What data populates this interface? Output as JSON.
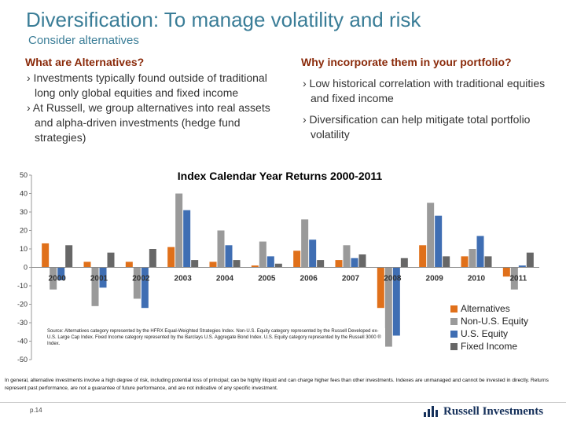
{
  "title": "Diversification: To manage volatility and risk",
  "subtitle": "Consider alternatives",
  "left_column": {
    "heading": "What are Alternatives?",
    "bullets": [
      "› Investments typically found outside of traditional long only global equities and fixed income",
      "› At Russell, we group alternatives into real assets and alpha-driven investments (hedge fund strategies)"
    ]
  },
  "right_column": {
    "heading": "Why incorporate them in your portfolio?",
    "bullets": [
      "› Low historical correlation with traditional equities and fixed income",
      "› Diversification can help mitigate total portfolio volatility"
    ]
  },
  "chart_data": {
    "type": "bar",
    "title": "Index Calendar Year Returns 2000-2011",
    "categories": [
      "2000",
      "2001",
      "2002",
      "2003",
      "2004",
      "2005",
      "2006",
      "2007",
      "2008",
      "2009",
      "2010",
      "2011"
    ],
    "ylim": [
      -50,
      50
    ],
    "yticks": [
      50,
      40,
      30,
      20,
      10,
      0,
      -10,
      -20,
      -30,
      -40,
      -50
    ],
    "series": [
      {
        "name": "Alternatives",
        "color": "#e0701a",
        "values": [
          13,
          3,
          3,
          11,
          3,
          1,
          9,
          4,
          -22,
          12,
          6,
          -5
        ]
      },
      {
        "name": "Non-U.S. Equity",
        "color": "#9a9a9a",
        "values": [
          -12,
          -21,
          -17,
          40,
          20,
          14,
          26,
          12,
          -43,
          35,
          10,
          -12
        ]
      },
      {
        "name": "U.S. Equity",
        "color": "#3f6eb3",
        "values": [
          -7,
          -11,
          -22,
          31,
          12,
          6,
          15,
          5,
          -37,
          28,
          17,
          1
        ]
      },
      {
        "name": "Fixed Income",
        "color": "#676767",
        "values": [
          12,
          8,
          10,
          4,
          4,
          2,
          4,
          7,
          5,
          6,
          6,
          8
        ]
      }
    ],
    "legend_position": "bottom-right"
  },
  "source_note": "Source: Alternatives category represented by the HFRX Equal-Weighted Strategies Index. Non-U.S. Equity category represented by the Russell Developed ex-U.S. Large Cap Index. Fixed Income category represented by the Barclays U.S. Aggregate Bond Index. U.S. Equity category represented by the Russell 3000 ® Index.",
  "disclaimer": "In general, alternative investments involve a high degree of risk, including potential loss of principal; can be highly illiquid and can charge higher fees than other investments. Indexes are unmanaged and cannot be invested in directly. Returns represent past performance, are not a guarantee of future performance, and are not indicative of any specific investment.",
  "page_number": "p.14",
  "logo_text": "Russell Investments"
}
